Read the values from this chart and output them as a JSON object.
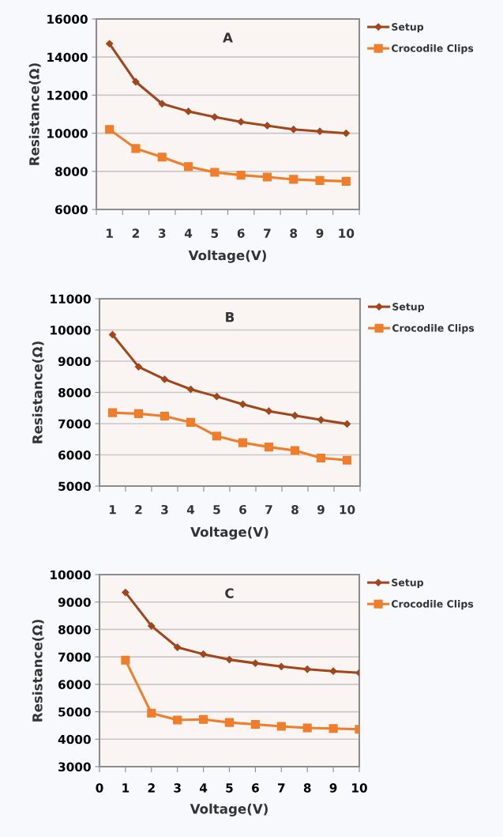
{
  "chart_data": [
    {
      "type": "line",
      "title": "A",
      "xlabel": "Voltage(V)",
      "ylabel": "Resistance(Ω)",
      "categories": [
        "1",
        "2",
        "3",
        "4",
        "5",
        "6",
        "7",
        "8",
        "9",
        "10"
      ],
      "ylim": [
        6000,
        16000
      ],
      "yticks": [
        6000,
        8000,
        10000,
        12000,
        14000,
        16000
      ],
      "grid": "y",
      "legend": "right",
      "series": [
        {
          "name": "Setup",
          "color": "#a2461c",
          "marker": "diamond",
          "values": [
            14700,
            12700,
            11550,
            11150,
            10850,
            10600,
            10400,
            10200,
            10100,
            10000
          ]
        },
        {
          "name": "Crocodile Clips",
          "color": "#f07d2a",
          "marker": "square",
          "values": [
            10200,
            9200,
            8750,
            8250,
            7950,
            7800,
            7700,
            7580,
            7520,
            7480
          ]
        }
      ]
    },
    {
      "type": "line",
      "title": "B",
      "xlabel": "Voltage(V)",
      "ylabel": "Resistance(Ω)",
      "categories": [
        "1",
        "2",
        "3",
        "4",
        "5",
        "6",
        "7",
        "8",
        "9",
        "10"
      ],
      "ylim": [
        5000,
        11000
      ],
      "yticks": [
        5000,
        6000,
        7000,
        8000,
        9000,
        10000,
        11000
      ],
      "grid": "y",
      "legend": "right",
      "series": [
        {
          "name": "Setup",
          "color": "#a2461c",
          "marker": "diamond",
          "values": [
            9850,
            8820,
            8420,
            8100,
            7870,
            7620,
            7400,
            7260,
            7120,
            6990
          ]
        },
        {
          "name": "Crocodile Clips",
          "color": "#f07d2a",
          "marker": "square",
          "values": [
            7350,
            7320,
            7240,
            7040,
            6600,
            6390,
            6250,
            6140,
            5900,
            5830
          ]
        }
      ]
    },
    {
      "type": "line",
      "title": "C",
      "xlabel": "Voltage(V)",
      "ylabel": "Resistance(Ω)",
      "x": [
        1,
        2,
        3,
        4,
        5,
        6,
        7,
        8,
        9,
        10
      ],
      "xlim": [
        0,
        10
      ],
      "xticks": [
        0,
        1,
        2,
        3,
        4,
        5,
        6,
        7,
        8,
        9,
        10
      ],
      "ylim": [
        3000,
        10000
      ],
      "yticks": [
        3000,
        4000,
        5000,
        6000,
        7000,
        8000,
        9000,
        10000
      ],
      "grid": "y",
      "legend": "right",
      "series": [
        {
          "name": "Setup",
          "color": "#a2461c",
          "marker": "diamond",
          "values": [
            9350,
            8130,
            7350,
            7100,
            6900,
            6770,
            6650,
            6550,
            6480,
            6420
          ]
        },
        {
          "name": "Crocodile Clips",
          "color": "#f07d2a",
          "marker": "square",
          "values": [
            6880,
            4950,
            4700,
            4720,
            4610,
            4540,
            4470,
            4410,
            4390,
            4360
          ]
        }
      ]
    }
  ]
}
